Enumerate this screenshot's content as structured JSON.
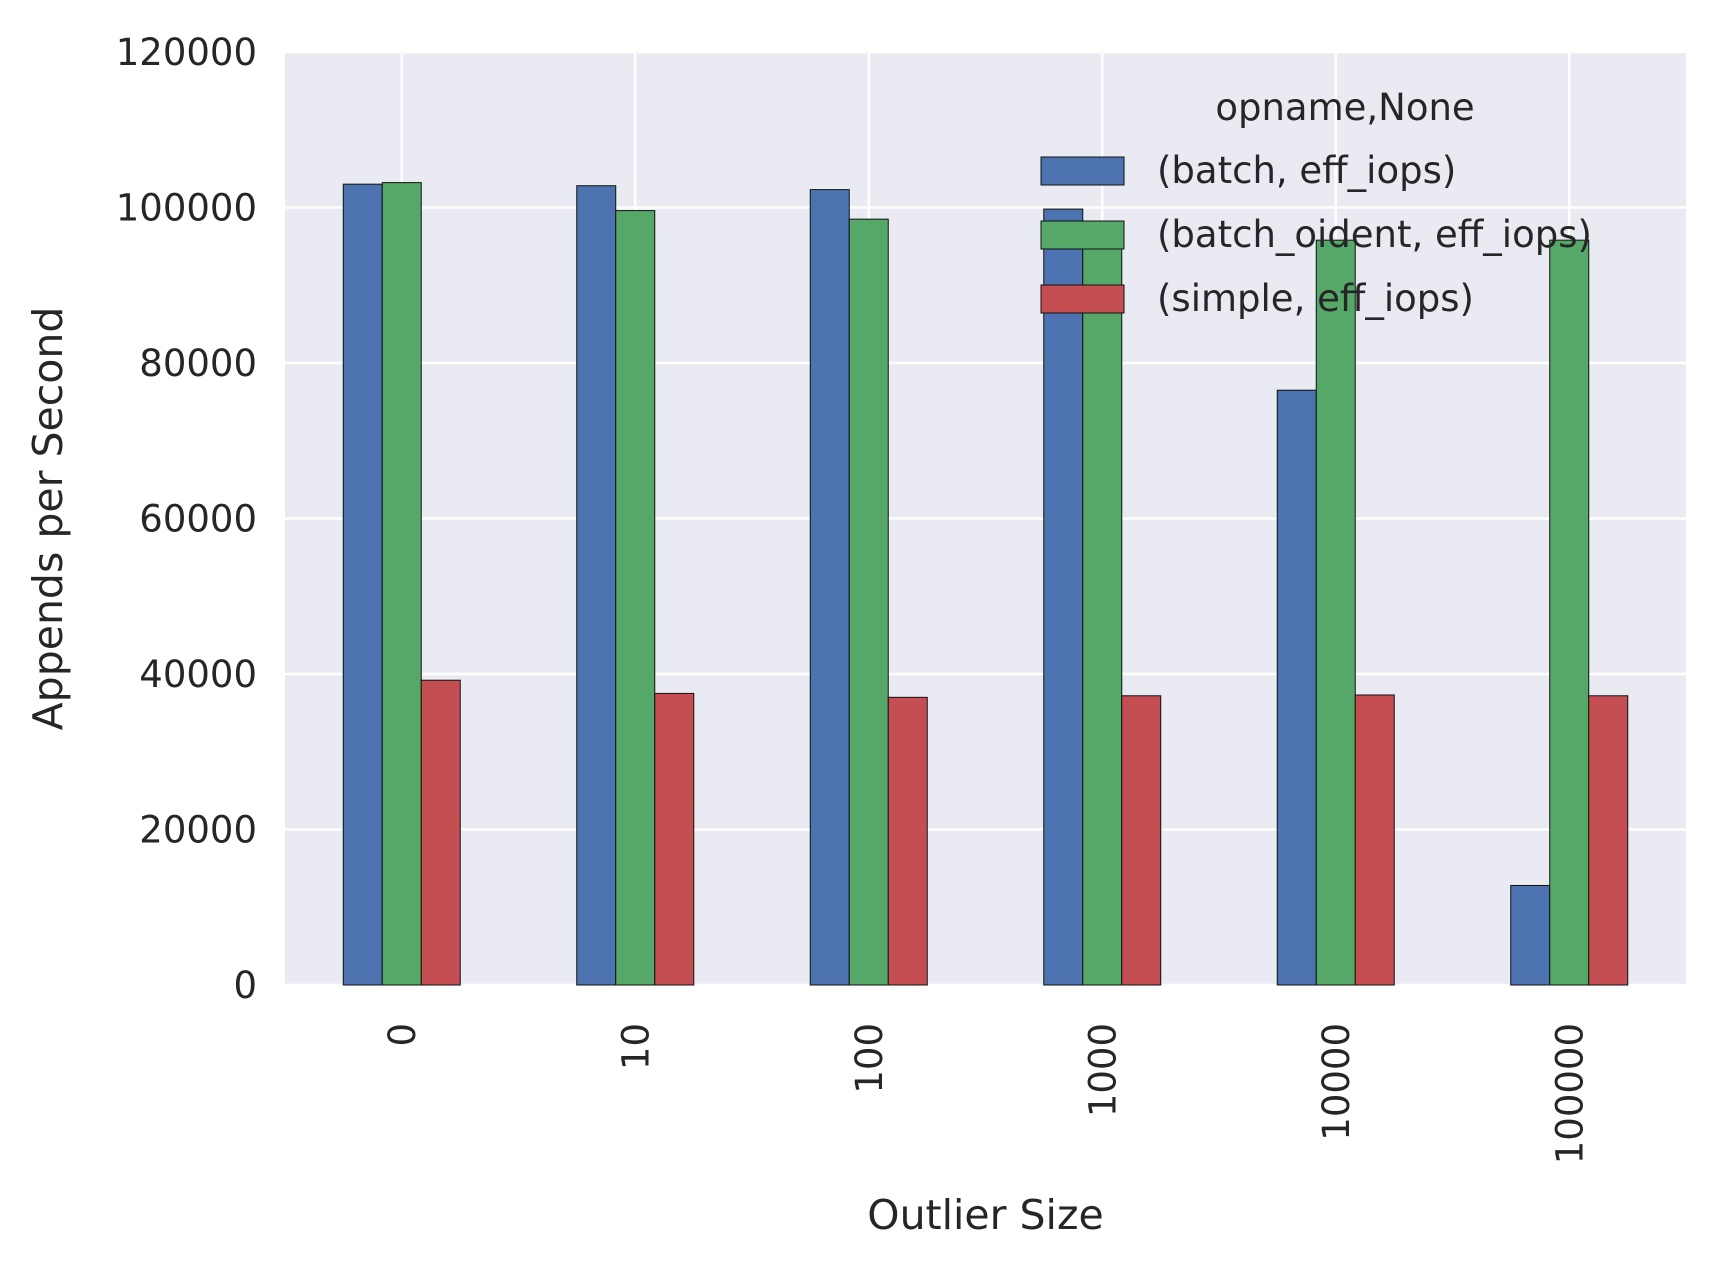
{
  "chart_data": {
    "type": "bar",
    "title": "",
    "xlabel": "Outlier Size",
    "ylabel": "Appends per Second",
    "categories": [
      "0",
      "10",
      "100",
      "1000",
      "10000",
      "100000"
    ],
    "series": [
      {
        "name": "(batch, eff_iops)",
        "color": "#4c72b0",
        "values": [
          103000,
          102800,
          102300,
          99800,
          76500,
          12800
        ]
      },
      {
        "name": "(batch_oident, eff_iops)",
        "color": "#55a868",
        "values": [
          103200,
          99600,
          98500,
          95800,
          95800,
          95800
        ]
      },
      {
        "name": "(simple, eff_iops)",
        "color": "#c44e52",
        "values": [
          39200,
          37500,
          37000,
          37200,
          37300,
          37200
        ]
      }
    ],
    "ylim": [
      0,
      120000
    ],
    "yticks": [
      0,
      20000,
      40000,
      60000,
      80000,
      100000,
      120000
    ],
    "grid": true,
    "legend_title": "opname,None",
    "legend_position": "top-right",
    "xtick_rotation": "vertical",
    "background_color": "#eaeaf2"
  }
}
